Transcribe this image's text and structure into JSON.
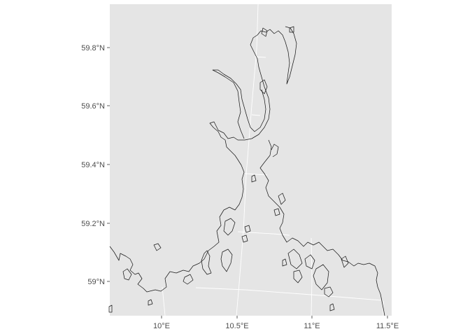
{
  "map": {
    "panel_color": "#e5e5e5",
    "grid_color": "#ffffff",
    "coastline_color": "#1a1a1a",
    "projection_note_hidden": "",
    "y_axis": {
      "labels": [
        "59.8°N",
        "59.6°N",
        "59.4°N",
        "59.2°N",
        "59°N"
      ]
    },
    "x_axis": {
      "labels": [
        "10°E",
        "10.5°E",
        "11°E",
        "11.5°E"
      ]
    }
  }
}
